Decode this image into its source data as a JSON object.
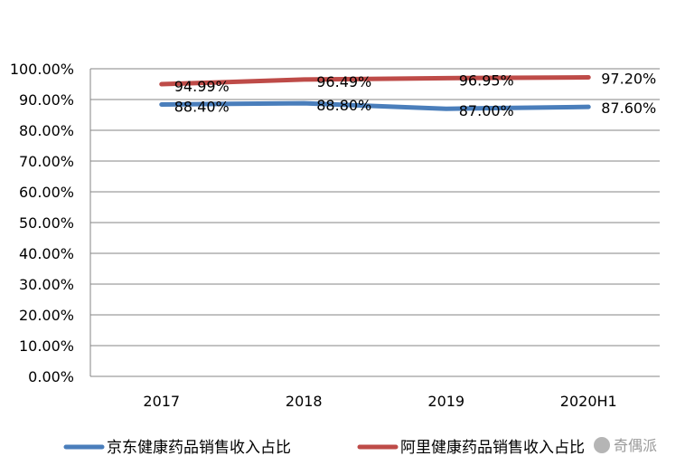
{
  "chart_data": {
    "type": "line",
    "title": "",
    "xlabel": "",
    "ylabel": "",
    "categories": [
      "2017",
      "2018",
      "2019",
      "2020H1"
    ],
    "ylim": [
      0,
      100
    ],
    "y_ticks": [
      "0.00%",
      "10.00%",
      "20.00%",
      "30.00%",
      "40.00%",
      "50.00%",
      "60.00%",
      "70.00%",
      "80.00%",
      "90.00%",
      "100.00%"
    ],
    "grid": true,
    "legend_position": "bottom",
    "series": [
      {
        "name": "京东健康药品销售收入占比",
        "color": "#4a7ebb",
        "values": [
          88.4,
          88.8,
          87.0,
          87.6
        ],
        "labels": [
          "88.40%",
          "88.80%",
          "87.00%",
          "87.60%"
        ]
      },
      {
        "name": "阿里健康药品销售收入占比",
        "color": "#be4b48",
        "values": [
          94.99,
          96.49,
          96.95,
          97.2
        ],
        "labels": [
          "94.99%",
          "96.49%",
          "96.95%",
          "97.20%"
        ]
      }
    ]
  },
  "watermark": "奇偶派"
}
